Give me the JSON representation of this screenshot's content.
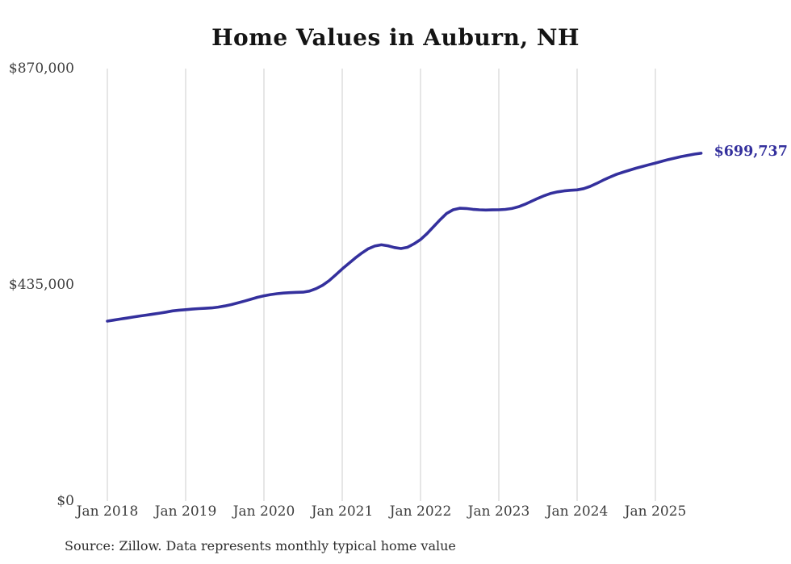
{
  "title": "Home Values in Auburn, NH",
  "source": "Source: Zillow. Data represents monthly typical home value",
  "chart_data": {
    "type": "line",
    "title": "Home Values in Auburn, NH",
    "xlabel": "",
    "ylabel": "",
    "ylim": [
      0,
      870000
    ],
    "grid": "vertical-only",
    "line_color": "#34309d",
    "gridline_color": "#cccccc",
    "end_label": "$699,737",
    "latest_value": 699737,
    "yticks": [
      {
        "value": 870000,
        "label": "$870,000"
      },
      {
        "value": 435000,
        "label": "$435,000"
      },
      {
        "value": 0,
        "label": "$0"
      }
    ],
    "xticks": [
      "Jan 2018",
      "Jan 2019",
      "Jan 2020",
      "Jan 2021",
      "Jan 2022",
      "Jan 2023",
      "Jan 2024",
      "Jan 2025"
    ],
    "points": [
      [
        "Jan 2018",
        362000
      ],
      [
        "Feb 2018",
        364000
      ],
      [
        "Mar 2018",
        366100
      ],
      [
        "Apr 2018",
        368200
      ],
      [
        "May 2018",
        370300
      ],
      [
        "Jun 2018",
        372300
      ],
      [
        "Jul 2018",
        374200
      ],
      [
        "Aug 2018",
        376100
      ],
      [
        "Sep 2018",
        378000
      ],
      [
        "Oct 2018",
        380200
      ],
      [
        "Nov 2018",
        382500
      ],
      [
        "Dec 2018",
        384000
      ],
      [
        "Jan 2019",
        385000
      ],
      [
        "Feb 2019",
        386200
      ],
      [
        "Mar 2019",
        387100
      ],
      [
        "Apr 2019",
        387800
      ],
      [
        "May 2019",
        388600
      ],
      [
        "Jun 2019",
        390200
      ],
      [
        "Jul 2019",
        392500
      ],
      [
        "Aug 2019",
        395300
      ],
      [
        "Sep 2019",
        398600
      ],
      [
        "Oct 2019",
        402200
      ],
      [
        "Nov 2019",
        406000
      ],
      [
        "Dec 2019",
        409800
      ],
      [
        "Jan 2020",
        413000
      ],
      [
        "Feb 2020",
        415300
      ],
      [
        "Mar 2020",
        417100
      ],
      [
        "Apr 2020",
        418400
      ],
      [
        "May 2020",
        419300
      ],
      [
        "Jun 2020",
        419900
      ],
      [
        "Jul 2020",
        420300
      ],
      [
        "Aug 2020",
        422500
      ],
      [
        "Sep 2020",
        427400
      ],
      [
        "Oct 2020",
        434200
      ],
      [
        "Nov 2020",
        443500
      ],
      [
        "Dec 2020",
        455000
      ],
      [
        "Jan 2021",
        467000
      ],
      [
        "Feb 2021",
        478000
      ],
      [
        "Mar 2021",
        489000
      ],
      [
        "Apr 2021",
        499000
      ],
      [
        "May 2021",
        507500
      ],
      [
        "Jun 2021",
        513000
      ],
      [
        "Jul 2021",
        515500
      ],
      [
        "Aug 2021",
        513500
      ],
      [
        "Sep 2021",
        510000
      ],
      [
        "Oct 2021",
        508000
      ],
      [
        "Nov 2021",
        510500
      ],
      [
        "Dec 2021",
        517500
      ],
      [
        "Jan 2022",
        526000
      ],
      [
        "Feb 2022",
        538000
      ],
      [
        "Mar 2022",
        552000
      ],
      [
        "Apr 2022",
        566000
      ],
      [
        "May 2022",
        578500
      ],
      [
        "Jun 2022",
        586000
      ],
      [
        "Jul 2022",
        589000
      ],
      [
        "Aug 2022",
        588500
      ],
      [
        "Sep 2022",
        587000
      ],
      [
        "Oct 2022",
        586000
      ],
      [
        "Nov 2022",
        585500
      ],
      [
        "Dec 2022",
        585800
      ],
      [
        "Jan 2023",
        586000
      ],
      [
        "Feb 2023",
        586800
      ],
      [
        "Mar 2023",
        588500
      ],
      [
        "Apr 2023",
        592000
      ],
      [
        "May 2023",
        597000
      ],
      [
        "Jun 2023",
        603000
      ],
      [
        "Jul 2023",
        609000
      ],
      [
        "Aug 2023",
        614500
      ],
      [
        "Sep 2023",
        619000
      ],
      [
        "Oct 2023",
        622000
      ],
      [
        "Nov 2023",
        624000
      ],
      [
        "Dec 2023",
        625200
      ],
      [
        "Jan 2024",
        626000
      ],
      [
        "Feb 2024",
        628500
      ],
      [
        "Mar 2024",
        633000
      ],
      [
        "Apr 2024",
        639000
      ],
      [
        "May 2024",
        645500
      ],
      [
        "Jun 2024",
        651500
      ],
      [
        "Jul 2024",
        657000
      ],
      [
        "Aug 2024",
        661500
      ],
      [
        "Sep 2024",
        665500
      ],
      [
        "Oct 2024",
        669500
      ],
      [
        "Nov 2024",
        673000
      ],
      [
        "Dec 2024",
        676500
      ],
      [
        "Jan 2025",
        680000
      ],
      [
        "Feb 2025",
        683500
      ],
      [
        "Mar 2025",
        687000
      ],
      [
        "Apr 2025",
        690000
      ],
      [
        "May 2025",
        693000
      ],
      [
        "Jun 2025",
        695500
      ],
      [
        "Jul 2025",
        698000
      ],
      [
        "Aug 2025",
        699737
      ]
    ]
  }
}
